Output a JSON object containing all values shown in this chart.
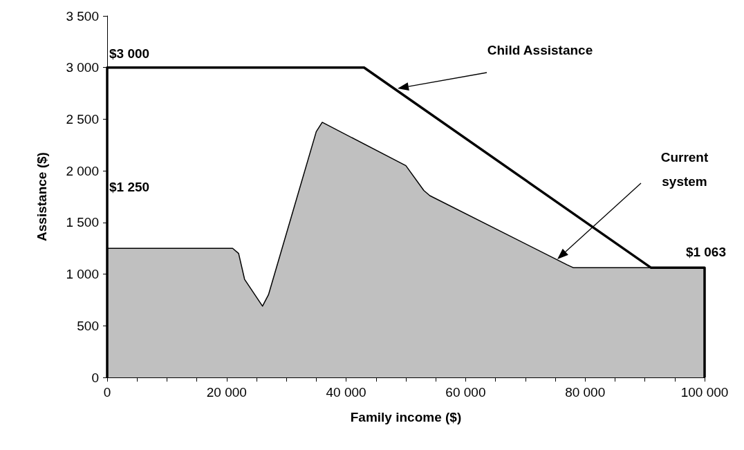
{
  "chart_data": {
    "type": "area",
    "xlabel": "Family income ($)",
    "ylabel": "Assistance ($)",
    "xlim": [
      0,
      100000
    ],
    "xticks": [
      {
        "value": 0,
        "label": "0"
      },
      {
        "value": 5000,
        "label": null
      },
      {
        "value": 10000,
        "label": null
      },
      {
        "value": 15000,
        "label": null
      },
      {
        "value": 20000,
        "label": "20 000"
      },
      {
        "value": 25000,
        "label": null
      },
      {
        "value": 30000,
        "label": null
      },
      {
        "value": 35000,
        "label": null
      },
      {
        "value": 40000,
        "label": "40 000"
      },
      {
        "value": 45000,
        "label": null
      },
      {
        "value": 50000,
        "label": null
      },
      {
        "value": 55000,
        "label": null
      },
      {
        "value": 60000,
        "label": "60 000"
      },
      {
        "value": 65000,
        "label": null
      },
      {
        "value": 70000,
        "label": null
      },
      {
        "value": 75000,
        "label": null
      },
      {
        "value": 80000,
        "label": "80 000"
      },
      {
        "value": 85000,
        "label": null
      },
      {
        "value": 90000,
        "label": null
      },
      {
        "value": 95000,
        "label": null
      },
      {
        "value": 100000,
        "label": "100 000"
      }
    ],
    "ylim": [
      0,
      3500
    ],
    "yticks": [
      0,
      {
        "value": 500,
        "label": "500"
      },
      {
        "value": 1000,
        "label": "1 000"
      },
      {
        "value": 1500,
        "label": "1 500"
      },
      {
        "value": 2000,
        "label": "2 000"
      },
      {
        "value": 2500,
        "label": "2 500"
      },
      {
        "value": 3000,
        "label": "3 000"
      },
      {
        "value": 3500,
        "label": "3 500"
      }
    ],
    "grid": false,
    "marker": "none",
    "series": [
      {
        "color": "#c0c0c0",
        "x": [
          0,
          21000,
          22000,
          23000,
          26000,
          27000,
          35000,
          36000,
          50000,
          53000,
          54000,
          77000,
          78000,
          100000,
          100000
        ],
        "values": [
          1250,
          1250,
          1200,
          950,
          690,
          800,
          2380,
          2470,
          2050,
          1810,
          1760,
          1090,
          1063,
          1063,
          0
        ]
      },
      {
        "type": "line",
        "color": "#000000",
        "x": [
          0,
          0,
          43000,
          91000,
          100000,
          100000
        ],
        "values": [
          0,
          3000,
          3000,
          1063,
          1063,
          0
        ]
      }
    ],
    "annotations": [
      "$3 000",
      "$1 250",
      "$1 063",
      "Child Assistance",
      "Current system"
    ]
  }
}
